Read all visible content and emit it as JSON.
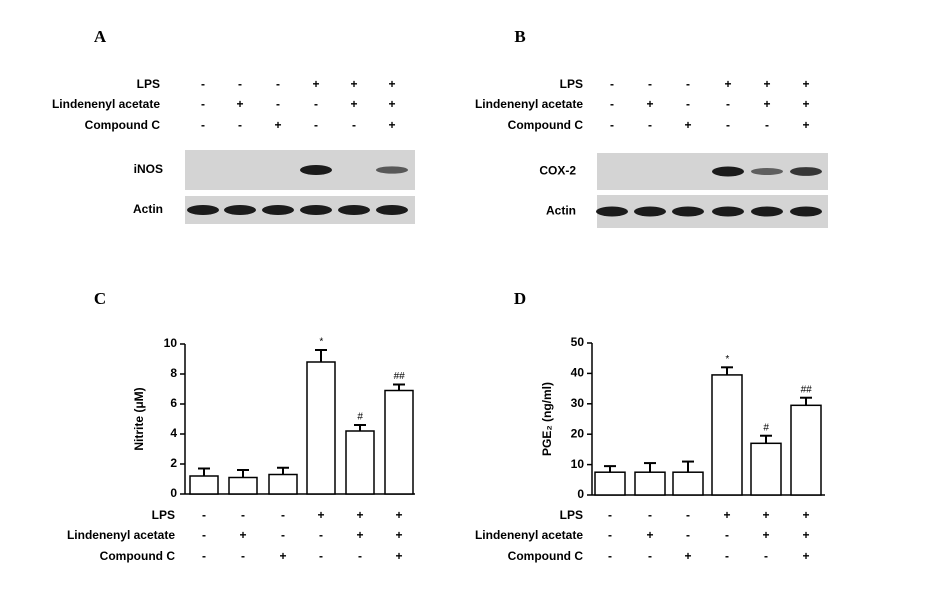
{
  "blots": [
    {
      "panel": "A",
      "rows": [
        "iNOS",
        "Actin"
      ],
      "treatments": [
        {
          "name": "LPS",
          "signs": [
            "-",
            "-",
            "-",
            "+",
            "+",
            "+"
          ]
        },
        {
          "name": "Lindenenyl acetate",
          "signs": [
            "-",
            "+",
            "-",
            "-",
            "+",
            "+"
          ]
        },
        {
          "name": "Compound C",
          "signs": [
            "-",
            "-",
            "+",
            "-",
            "-",
            "+"
          ]
        }
      ]
    },
    {
      "panel": "B",
      "rows": [
        "COX-2",
        "Actin"
      ],
      "treatments": [
        {
          "name": "LPS",
          "signs": [
            "-",
            "-",
            "-",
            "+",
            "+",
            "+"
          ]
        },
        {
          "name": "Lindenenyl acetate",
          "signs": [
            "-",
            "+",
            "-",
            "-",
            "+",
            "+"
          ]
        },
        {
          "name": "Compound C",
          "signs": [
            "-",
            "-",
            "+",
            "-",
            "-",
            "+"
          ]
        }
      ]
    }
  ],
  "chart_data": [
    {
      "type": "bar",
      "panel": "C",
      "y_label": "Nitrite (μM)",
      "values": [
        1.2,
        1.1,
        1.3,
        8.8,
        4.2,
        6.9
      ],
      "errors": [
        0.5,
        0.5,
        0.45,
        0.8,
        0.4,
        0.4
      ],
      "significance": [
        null,
        null,
        null,
        "*",
        "#",
        "##"
      ],
      "ylim": [
        0,
        10
      ],
      "yticks": [
        0,
        2,
        4,
        6,
        8,
        10
      ],
      "color": "#ffffff",
      "treatments": [
        {
          "name": "LPS",
          "signs": [
            "-",
            "-",
            "-",
            "+",
            "+",
            "+"
          ]
        },
        {
          "name": "Lindenenyl acetate",
          "signs": [
            "-",
            "+",
            "-",
            "-",
            "+",
            "+"
          ]
        },
        {
          "name": "Compound C",
          "signs": [
            "-",
            "-",
            "+",
            "-",
            "-",
            "+"
          ]
        }
      ]
    },
    {
      "type": "bar",
      "panel": "D",
      "y_label": "PGE₂ (ng/ml)",
      "values": [
        7.5,
        7.5,
        7.5,
        39.5,
        17,
        29.5
      ],
      "errors": [
        2,
        3,
        3.5,
        2.5,
        2.5,
        2.5
      ],
      "significance": [
        null,
        null,
        null,
        "*",
        "#",
        "##"
      ],
      "ylim": [
        0,
        50
      ],
      "yticks": [
        0,
        10,
        20,
        30,
        40,
        50
      ],
      "color": "#ffffff",
      "treatments": [
        {
          "name": "LPS",
          "signs": [
            "-",
            "-",
            "-",
            "+",
            "+",
            "+"
          ]
        },
        {
          "name": "Lindenenyl acetate",
          "signs": [
            "-",
            "+",
            "-",
            "-",
            "+",
            "+"
          ]
        },
        {
          "name": "Compound C",
          "signs": [
            "-",
            "-",
            "+",
            "-",
            "-",
            "+"
          ]
        }
      ]
    }
  ]
}
